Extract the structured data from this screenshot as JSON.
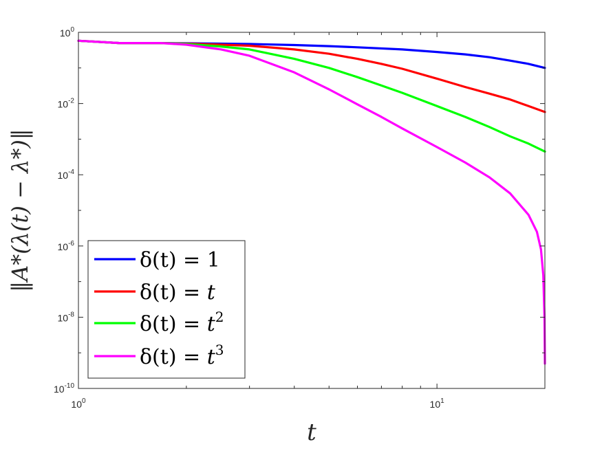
{
  "chart_data": {
    "type": "line",
    "xscale": "log",
    "yscale": "log",
    "xlim": [
      1,
      20
    ],
    "ylim": [
      1e-10,
      1
    ],
    "xlabel": "t",
    "ylabel": "‖A*(λ(t) − λ*)‖",
    "x_ticks": [
      {
        "value": 1,
        "base": "10",
        "exp": "0"
      },
      {
        "value": 10,
        "base": "10",
        "exp": "1"
      }
    ],
    "y_ticks": [
      {
        "value": 1.0,
        "base": "10",
        "exp": "0"
      },
      {
        "value": 0.01,
        "base": "10",
        "exp": "-2"
      },
      {
        "value": 0.0001,
        "base": "10",
        "exp": "-4"
      },
      {
        "value": 1e-06,
        "base": "10",
        "exp": "-6"
      },
      {
        "value": 1e-08,
        "base": "10",
        "exp": "-8"
      },
      {
        "value": 1e-10,
        "base": "10",
        "exp": "-10"
      }
    ],
    "grid": false,
    "legend_position": "bottom-left",
    "series": [
      {
        "name": "δ(t) = 1",
        "legend_lhs": "δ(t) = ",
        "legend_rhs": "1",
        "legend_sup": "",
        "color": "#0000ff",
        "x": [
          1,
          1.3,
          1.7,
          2,
          3,
          4,
          5,
          6,
          8,
          10,
          12,
          14,
          16,
          18,
          20
        ],
        "y": [
          0.58,
          0.5,
          0.5,
          0.49,
          0.47,
          0.44,
          0.41,
          0.38,
          0.33,
          0.28,
          0.24,
          0.2,
          0.16,
          0.13,
          0.1
        ]
      },
      {
        "name": "δ(t) = t",
        "legend_lhs": "δ(t) = ",
        "legend_rhs": "t",
        "legend_sup": "",
        "color": "#ff0000",
        "x": [
          1,
          1.3,
          1.7,
          2,
          2.5,
          3,
          4,
          5,
          6,
          7,
          8,
          10,
          12,
          14,
          16,
          18,
          20
        ],
        "y": [
          0.58,
          0.5,
          0.5,
          0.48,
          0.45,
          0.42,
          0.33,
          0.25,
          0.18,
          0.13,
          0.095,
          0.05,
          0.029,
          0.019,
          0.013,
          0.0085,
          0.0058
        ]
      },
      {
        "name": "δ(t) = t²",
        "legend_lhs": "δ(t) = ",
        "legend_rhs": "t",
        "legend_sup": "2",
        "color": "#00ff00",
        "x": [
          1,
          1.3,
          1.7,
          2,
          2.5,
          3,
          4,
          5,
          6,
          7,
          8,
          10,
          12,
          14,
          16,
          18,
          20
        ],
        "y": [
          0.58,
          0.5,
          0.5,
          0.47,
          0.4,
          0.33,
          0.18,
          0.1,
          0.055,
          0.032,
          0.02,
          0.0085,
          0.0042,
          0.0022,
          0.0012,
          0.00075,
          0.00045
        ]
      },
      {
        "name": "δ(t) = t³",
        "legend_lhs": "δ(t) = ",
        "legend_rhs": "t",
        "legend_sup": "3",
        "color": "#ff00ff",
        "x": [
          1,
          1.3,
          1.7,
          2,
          2.5,
          3,
          4,
          5,
          6,
          7,
          8,
          10,
          12,
          14,
          16,
          18,
          19,
          19.5,
          19.8,
          19.95,
          20
        ],
        "y": [
          0.58,
          0.5,
          0.5,
          0.45,
          0.33,
          0.22,
          0.075,
          0.025,
          0.0095,
          0.0042,
          0.002,
          0.0006,
          0.00022,
          8.5e-05,
          3e-05,
          7.5e-06,
          2.5e-06,
          8e-07,
          1.5e-07,
          1e-08,
          5e-10
        ]
      }
    ]
  }
}
